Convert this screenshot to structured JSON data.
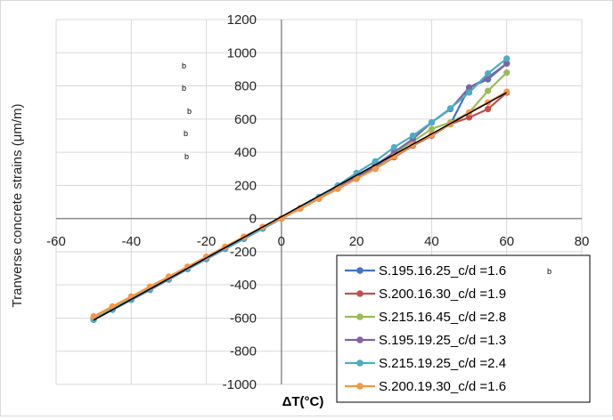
{
  "chart_data": {
    "type": "line",
    "xlabel": "ΔT(°C)",
    "ylabel": "Tranverse concrete  strains (μm/m)",
    "xlim": [
      -60,
      80
    ],
    "ylim": [
      -1000,
      1200
    ],
    "x_ticks": [
      "-60",
      "-40",
      "-20",
      "0",
      "20",
      "40",
      "60",
      "80"
    ],
    "y_ticks": [
      "-1000",
      "-800",
      "-600",
      "-400",
      "-200",
      "0",
      "200",
      "400",
      "600",
      "800",
      "1000",
      "1200"
    ],
    "grid": true,
    "legend_position": "bottom-right",
    "stray_marks": [
      "b",
      "b",
      "b",
      "b",
      "b"
    ],
    "legend_subscript": "b",
    "series": [
      {
        "name": "S.195.16.25_c/d =1.6",
        "color": "#4472C4",
        "x": [
          -50,
          -45,
          -40,
          -35,
          -30,
          -25,
          -20,
          -15,
          -10,
          -5,
          0,
          5,
          10,
          15,
          20,
          25,
          30,
          35,
          40,
          45,
          50,
          55,
          60
        ],
        "y": [
          -605,
          -548,
          -485,
          -425,
          -363,
          -303,
          -243,
          -182,
          -122,
          -60,
          0,
          62,
          122,
          185,
          248,
          310,
          375,
          440,
          505,
          570,
          790,
          840,
          935
        ]
      },
      {
        "name": "S.200.16.30_c/d =1.9",
        "color": "#C0504D",
        "x": [
          -50,
          -45,
          -40,
          -35,
          -30,
          -25,
          -20,
          -15,
          -10,
          -5,
          0,
          5,
          10,
          15,
          20,
          25,
          30,
          35,
          40,
          45,
          50,
          55,
          60
        ],
        "y": [
          -600,
          -540,
          -480,
          -420,
          -360,
          -300,
          -240,
          -180,
          -120,
          -60,
          0,
          60,
          120,
          180,
          240,
          300,
          370,
          440,
          500,
          570,
          610,
          660,
          760
        ]
      },
      {
        "name": "S.215.16.45_c/d =2.8",
        "color": "#9BBB59",
        "x": [
          -50,
          -45,
          -40,
          -35,
          -30,
          -25,
          -20,
          -15,
          -10,
          -5,
          0,
          5,
          10,
          15,
          20,
          25,
          30,
          35,
          40,
          45,
          50,
          55,
          60
        ],
        "y": [
          -600,
          -540,
          -480,
          -420,
          -360,
          -300,
          -240,
          -180,
          -120,
          -60,
          0,
          60,
          125,
          190,
          255,
          325,
          395,
          465,
          540,
          580,
          640,
          770,
          880
        ]
      },
      {
        "name": "S.195.19.25_c/d =1.3",
        "color": "#8064A2",
        "x": [
          -50,
          -45,
          -40,
          -35,
          -30,
          -25,
          -20,
          -15,
          -10,
          -5,
          0,
          5,
          10,
          15,
          20,
          25,
          30,
          35,
          40,
          45,
          50,
          55,
          60
        ],
        "y": [
          -610,
          -550,
          -490,
          -430,
          -368,
          -305,
          -245,
          -183,
          -122,
          -60,
          0,
          62,
          125,
          190,
          255,
          320,
          400,
          480,
          580,
          660,
          790,
          850,
          935
        ]
      },
      {
        "name": "S.215.19.25_c/d =2.4",
        "color": "#4BACC6",
        "x": [
          -50,
          -45,
          -40,
          -35,
          -30,
          -25,
          -20,
          -15,
          -10,
          -5,
          0,
          5,
          10,
          15,
          20,
          25,
          30,
          35,
          40,
          45,
          50,
          55,
          60
        ],
        "y": [
          -610,
          -550,
          -488,
          -427,
          -365,
          -304,
          -243,
          -182,
          -120,
          -60,
          0,
          63,
          130,
          200,
          275,
          345,
          430,
          500,
          580,
          665,
          760,
          875,
          965
        ]
      },
      {
        "name": "S.200.19.30_c/d =1.6",
        "color": "#F79646",
        "x": [
          -50,
          -45,
          -40,
          -35,
          -30,
          -25,
          -20,
          -15,
          -10,
          -5,
          0,
          5,
          10,
          15,
          20,
          25,
          30,
          35,
          40,
          45,
          50,
          55,
          60
        ],
        "y": [
          -590,
          -530,
          -470,
          -410,
          -350,
          -290,
          -230,
          -170,
          -110,
          -50,
          0,
          60,
          120,
          180,
          240,
          300,
          375,
          445,
          505,
          570,
          640,
          700,
          765
        ]
      }
    ]
  }
}
